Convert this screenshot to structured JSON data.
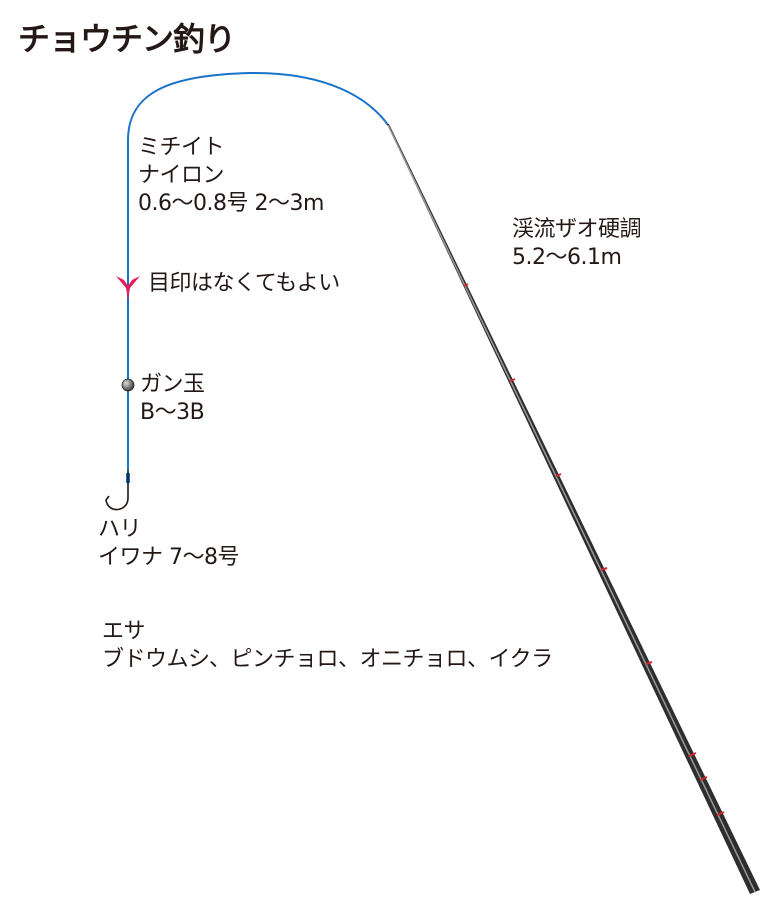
{
  "title": "チョウチン釣り",
  "line": {
    "l1": "ミチイト",
    "l2": "ナイロン",
    "l3": "0.6〜0.8号 2〜3m"
  },
  "marker": "目印はなくてもよい",
  "sinker": {
    "l1": "ガン玉",
    "l2": "B〜3B"
  },
  "hook": {
    "l1": "ハリ",
    "l2": "イワナ 7〜8号"
  },
  "bait": {
    "l1": "エサ",
    "l2": "ブドウムシ、ピンチョロ、オニチョロ、イクラ"
  },
  "rod": {
    "l1": "渓流ザオ硬調",
    "l2": "5.2〜6.1m"
  },
  "colors": {
    "line": "#1a73c8",
    "marker": "#e5195f",
    "rod": "#3a3a3a",
    "guide": "#d9232d",
    "text": "#231815"
  }
}
